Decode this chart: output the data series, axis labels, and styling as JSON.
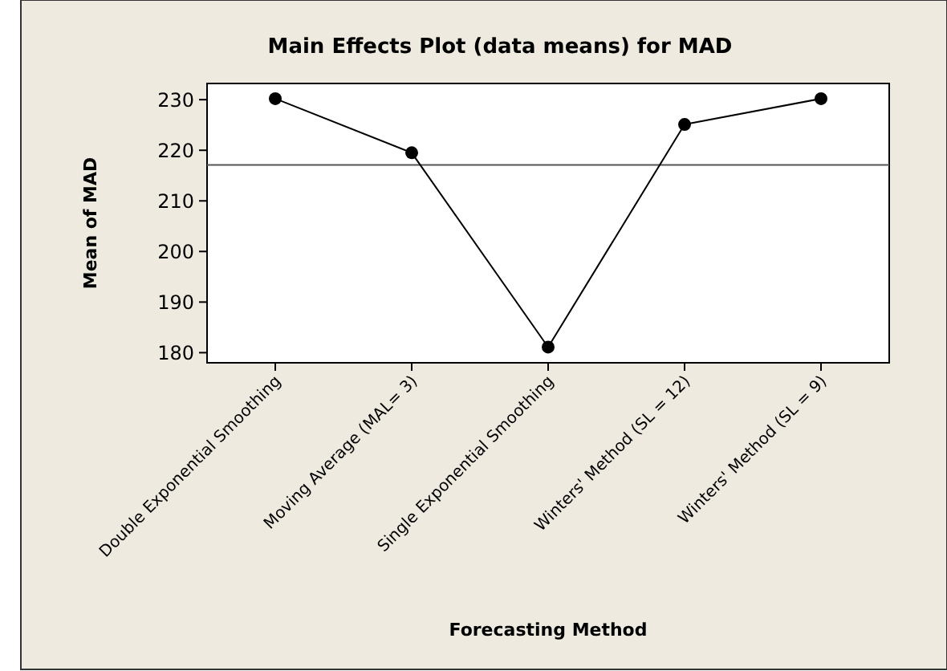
{
  "chart_data": {
    "type": "line",
    "title": "Main Effects Plot (data means) for MAD",
    "xlabel": "Forecasting Method",
    "ylabel": "Mean of MAD",
    "categories": [
      "Double Exponential Smoothing",
      "Moving Average (MAL= 3)",
      "Single Exponential Smoothing",
      "Winters' Method (SL = 12)",
      "Winters' Method (SL = 9)"
    ],
    "series": [
      {
        "color": "#000000",
        "values": [
          230.2,
          219.5,
          181.1,
          225.1,
          230.2
        ]
      }
    ],
    "ylim": [
      178,
      233.2
    ],
    "yticks": [
      180,
      190,
      200,
      210,
      220,
      230
    ],
    "marker": "circle",
    "line_style": "solid",
    "grid": false,
    "ref_lines": [
      {
        "axis": "y",
        "value": 217.1,
        "color": "#555555"
      }
    ]
  }
}
